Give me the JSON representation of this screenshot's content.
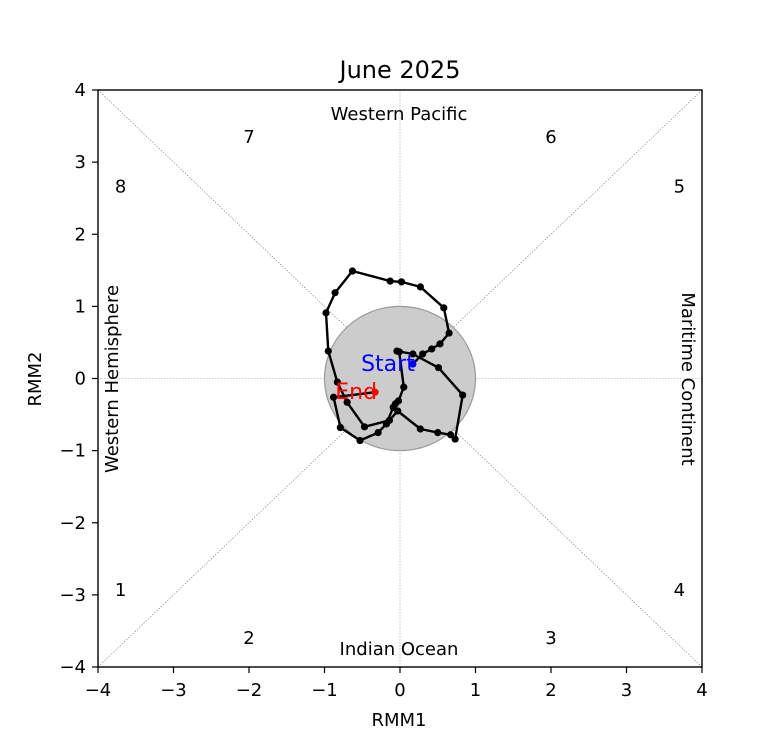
{
  "chart_data": {
    "type": "scatter",
    "title": "June 2025",
    "xlabel": "RMM1",
    "ylabel": "RMM2",
    "xlim": [
      -4,
      4
    ],
    "ylim": [
      -4,
      4
    ],
    "xticks": [
      -4,
      -3,
      -2,
      -1,
      0,
      1,
      2,
      3,
      4
    ],
    "yticks": [
      -4,
      -3,
      -2,
      -1,
      0,
      1,
      2,
      3,
      4
    ],
    "tick_labels": [
      "−4",
      "−3",
      "−2",
      "−1",
      "0",
      "1",
      "2",
      "3",
      "4"
    ],
    "grid": true,
    "unit_circle_radius": 1,
    "regions": {
      "top": "Western Pacific",
      "bottom": "Indian Ocean",
      "left": "Western Hemisphere",
      "right": "Maritime Continent"
    },
    "phases": [
      {
        "label": "1",
        "x": -3.7,
        "y": -2.93
      },
      {
        "label": "2",
        "x": -2.0,
        "y": -3.6
      },
      {
        "label": "3",
        "x": 2.0,
        "y": -3.6
      },
      {
        "label": "4",
        "x": 3.7,
        "y": -2.93
      },
      {
        "label": "5",
        "x": 3.7,
        "y": 2.66
      },
      {
        "label": "6",
        "x": 2.0,
        "y": 3.35
      },
      {
        "label": "7",
        "x": -2.0,
        "y": 3.35
      },
      {
        "label": "8",
        "x": -3.7,
        "y": 2.66
      }
    ],
    "start_label": "Start",
    "end_label": "End",
    "start_color": "#0000ff",
    "end_color": "#ff0000",
    "line_color": "#000000",
    "circle_color": "#c9c9c9",
    "series": [
      {
        "x": [
          0.17,
          0.3,
          0.42,
          0.53,
          0.65,
          0.58,
          0.27,
          0.02,
          -0.13,
          -0.63,
          -0.86,
          -0.98,
          -0.95,
          -0.83,
          -0.7,
          -0.47,
          -0.14,
          -0.03,
          0.27,
          0.5,
          0.67,
          0.73,
          0.83,
          0.51,
          0.17,
          -0.04,
          -0.01,
          0.05,
          -0.02,
          -0.06,
          -0.09,
          -0.18,
          -0.29,
          -0.53,
          -0.79,
          -0.88,
          -0.33
        ],
        "y": [
          0.2,
          0.34,
          0.41,
          0.48,
          0.63,
          0.98,
          1.27,
          1.34,
          1.35,
          1.49,
          1.19,
          0.91,
          0.38,
          -0.05,
          -0.33,
          -0.67,
          -0.58,
          -0.45,
          -0.7,
          -0.75,
          -0.78,
          -0.84,
          -0.23,
          0.15,
          0.34,
          0.38,
          0.37,
          -0.12,
          -0.31,
          -0.35,
          -0.4,
          -0.63,
          -0.75,
          -0.86,
          -0.68,
          -0.26,
          -0.19
        ]
      }
    ]
  }
}
